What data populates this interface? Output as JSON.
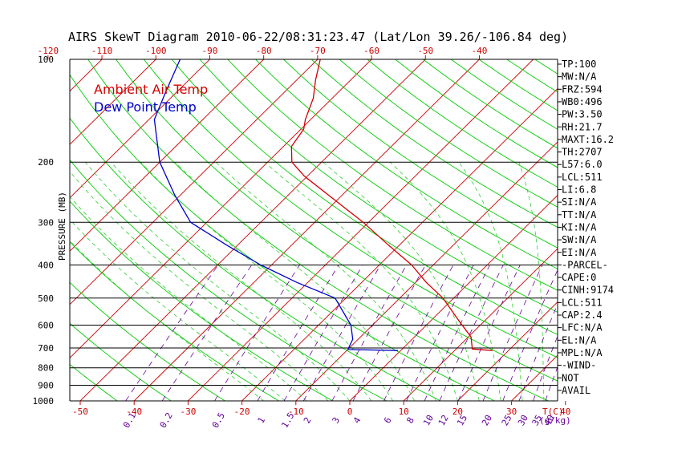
{
  "colors": {
    "ambient": "#d40000",
    "dewpoint": "#0000cc",
    "isotherm": "#cc0000",
    "dry_adiabat": "#00cc00",
    "moist_adiabat": "#33cc33",
    "mixing_ratio": "#660099",
    "axis": "#000000"
  },
  "chart_data": {
    "type": "line",
    "title": "AIRS SkewT Diagram 2010-06-22/08:31:23.47 (Lat/Lon 39.26/-106.84 deg)",
    "ylabel": "PRESSURE (MB)",
    "xlabel": "T(C)",
    "mixing_ratio_label": "(g/kg)",
    "y_scale": "log-pressure",
    "ylim": [
      1000,
      100
    ],
    "pressure_levels": [
      100,
      200,
      300,
      400,
      500,
      600,
      700,
      800,
      900,
      1000
    ],
    "bottom_temp_ticks": [
      -50,
      -40,
      -30,
      -20,
      -10,
      0,
      10,
      20,
      30,
      40
    ],
    "top_temp_ticks": [
      -120,
      -110,
      -100,
      -90,
      -80,
      -70,
      -60,
      -50,
      -40
    ],
    "mixing_ratio_ticks": [
      "0.1",
      "0.2",
      "0.5",
      "1",
      "1.5",
      "2",
      "3",
      "4",
      "6",
      "8",
      "10",
      "12",
      "15",
      "20",
      "25",
      "30",
      "35",
      "40"
    ],
    "legend": [
      {
        "label": "Ambient Air Temp",
        "color": "#d40000"
      },
      {
        "label": "Dew Point Temp",
        "color": "#0000cc"
      }
    ],
    "series": [
      {
        "name": "Ambient Air Temp",
        "points": [
          {
            "p": 712,
            "t": 17.0
          },
          {
            "p": 705,
            "t": 13.0
          },
          {
            "p": 650,
            "t": 10.5
          },
          {
            "p": 580,
            "t": 5.0
          },
          {
            "p": 500,
            "t": -2.0
          },
          {
            "p": 450,
            "t": -8.0
          },
          {
            "p": 400,
            "t": -14.0
          },
          {
            "p": 350,
            "t": -22.0
          },
          {
            "p": 300,
            "t": -31.0
          },
          {
            "p": 260,
            "t": -40.0
          },
          {
            "p": 220,
            "t": -50.5
          },
          {
            "p": 200,
            "t": -55.5
          },
          {
            "p": 180,
            "t": -58.5
          },
          {
            "p": 160,
            "t": -59.5
          },
          {
            "p": 150,
            "t": -61.0
          },
          {
            "p": 130,
            "t": -63.5
          },
          {
            "p": 115,
            "t": -66.5
          },
          {
            "p": 100,
            "t": -69.5
          }
        ]
      },
      {
        "name": "Dew Point Temp",
        "points": [
          {
            "p": 712,
            "t": -0.5
          },
          {
            "p": 707,
            "t": -10.0
          },
          {
            "p": 660,
            "t": -11.0
          },
          {
            "p": 600,
            "t": -14.0
          },
          {
            "p": 500,
            "t": -22.0
          },
          {
            "p": 450,
            "t": -32.0
          },
          {
            "p": 400,
            "t": -42.0
          },
          {
            "p": 350,
            "t": -52.0
          },
          {
            "p": 300,
            "t": -63.0
          },
          {
            "p": 250,
            "t": -71.0
          },
          {
            "p": 200,
            "t": -80.0
          },
          {
            "p": 150,
            "t": -89.0
          },
          {
            "p": 125,
            "t": -92.0
          },
          {
            "p": 100,
            "t": -95.5
          }
        ]
      }
    ]
  },
  "side_panel": [
    "TP:100",
    "MW:N/A",
    "FRZ:594",
    "WB0:496",
    "PW:3.50",
    "RH:21.7",
    "MAXT:16.2",
    "TH:2707",
    "L57:6.0",
    "LCL:511",
    "LI:6.8",
    "SI:N/A",
    "TT:N/A",
    "KI:N/A",
    "SW:N/A",
    "EI:N/A",
    "-PARCEL-",
    "CAPE:0",
    "CINH:9174",
    "LCL:511",
    "CAP:2.4",
    "LFC:N/A",
    "EL:N/A",
    "MPL:N/A",
    "-WIND-",
    "NOT",
    "AVAIL"
  ]
}
